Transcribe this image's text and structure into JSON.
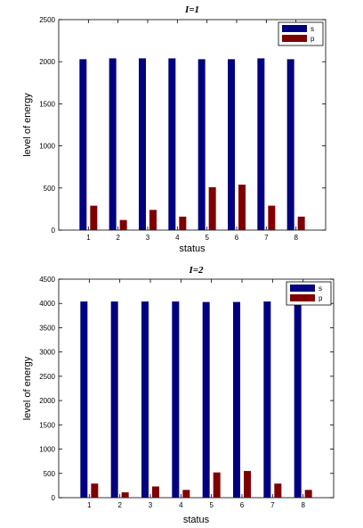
{
  "chart_data": [
    {
      "type": "bar",
      "title": "I=1",
      "xlabel": "status",
      "ylabel": "level of energy",
      "categories": [
        "1",
        "2",
        "3",
        "4",
        "5",
        "6",
        "7",
        "8"
      ],
      "ylim": [
        0,
        2500
      ],
      "yticks": [
        0,
        500,
        1000,
        1500,
        2000,
        2500
      ],
      "series": [
        {
          "name": "s",
          "color": "#000080",
          "values": [
            2030,
            2040,
            2040,
            2040,
            2030,
            2030,
            2040,
            2030
          ]
        },
        {
          "name": "p",
          "color": "#800000",
          "values": [
            290,
            120,
            240,
            160,
            510,
            540,
            290,
            160
          ]
        }
      ],
      "legend_position": "top-right",
      "grid": false
    },
    {
      "type": "bar",
      "title": "I=2",
      "xlabel": "status",
      "ylabel": "level of energy",
      "categories": [
        "1",
        "2",
        "3",
        "4",
        "5",
        "6",
        "7",
        "8"
      ],
      "ylim": [
        0,
        4500
      ],
      "yticks": [
        0,
        500,
        1000,
        1500,
        2000,
        2500,
        3000,
        3500,
        4000,
        4500
      ],
      "series": [
        {
          "name": "s",
          "color": "#000080",
          "values": [
            4040,
            4040,
            4040,
            4040,
            4030,
            4030,
            4040,
            4030
          ]
        },
        {
          "name": "p",
          "color": "#800000",
          "values": [
            290,
            110,
            230,
            160,
            520,
            550,
            290,
            160
          ]
        }
      ],
      "legend_position": "top-right",
      "grid": false
    }
  ]
}
